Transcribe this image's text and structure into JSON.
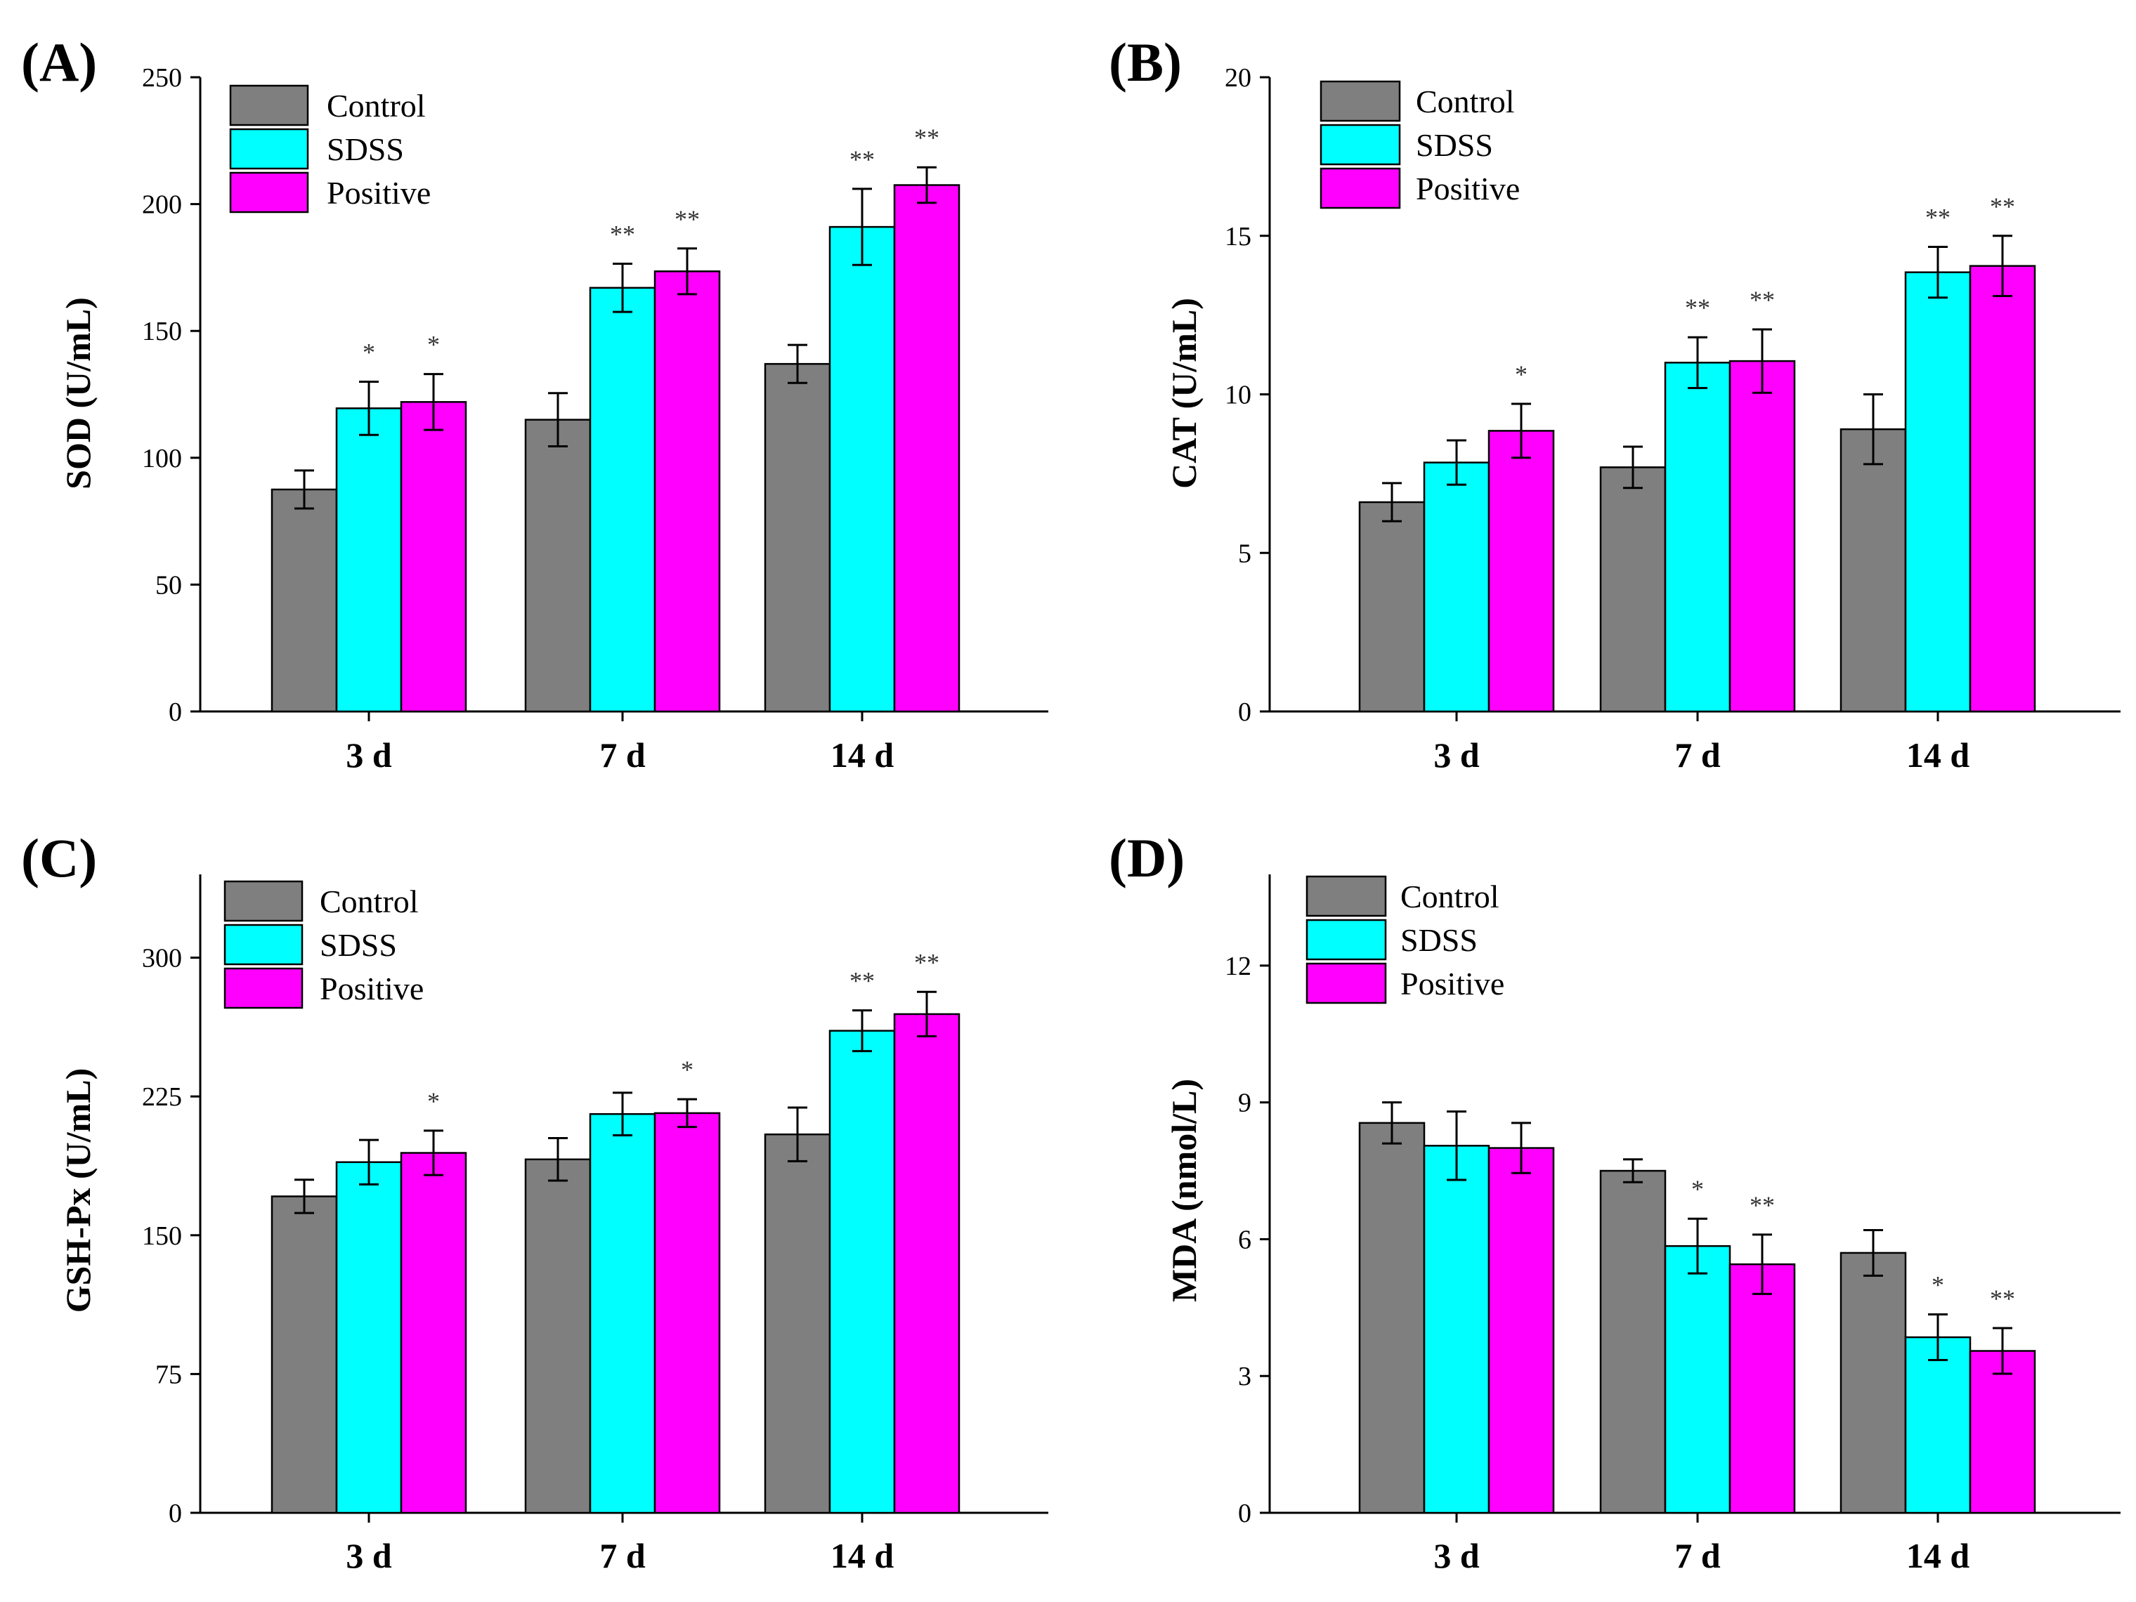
{
  "colors": {
    "Control": "#7f7f7f",
    "SDSS": "#00ffff",
    "Positive": "#ff00ff"
  },
  "legend_position": "top-left",
  "chart_data": [
    {
      "panel": "(A)",
      "type": "bar",
      "categories": [
        "3 d",
        "7 d",
        "14 d"
      ],
      "ylabel": "SOD (U/mL)",
      "ylim": [
        0,
        250
      ],
      "yticks": [
        0,
        50,
        100,
        150,
        200,
        250
      ],
      "legend": [
        "Control",
        "SDSS",
        "Positive"
      ],
      "series": [
        {
          "name": "Control",
          "values": [
            87.5,
            115,
            137
          ],
          "errors": [
            7.5,
            10.5,
            7.5
          ],
          "sig": [
            "",
            "",
            ""
          ]
        },
        {
          "name": "SDSS",
          "values": [
            119.5,
            167,
            191
          ],
          "errors": [
            10.5,
            9.5,
            15
          ],
          "sig": [
            "*",
            "**",
            "**"
          ]
        },
        {
          "name": "Positive",
          "values": [
            122,
            173.5,
            207.5
          ],
          "errors": [
            11,
            9,
            7
          ],
          "sig": [
            "*",
            "**",
            "**"
          ]
        }
      ]
    },
    {
      "panel": "(B)",
      "type": "bar",
      "categories": [
        "3 d",
        "7 d",
        "14 d"
      ],
      "ylabel": "CAT (U/mL)",
      "ylim": [
        0,
        20
      ],
      "yticks": [
        0,
        5,
        10,
        15,
        20
      ],
      "legend": [
        "Control",
        "SDSS",
        "Positive"
      ],
      "series": [
        {
          "name": "Control",
          "values": [
            6.6,
            7.7,
            8.9
          ],
          "errors": [
            0.6,
            0.65,
            1.1
          ],
          "sig": [
            "",
            "",
            ""
          ]
        },
        {
          "name": "SDSS",
          "values": [
            7.85,
            11,
            13.85
          ],
          "errors": [
            0.7,
            0.8,
            0.8
          ],
          "sig": [
            "",
            "**",
            "**"
          ]
        },
        {
          "name": "Positive",
          "values": [
            8.85,
            11.05,
            14.05
          ],
          "errors": [
            0.85,
            1.0,
            0.95
          ],
          "sig": [
            "*",
            "**",
            "**"
          ]
        }
      ]
    },
    {
      "panel": "(C)",
      "type": "bar",
      "categories": [
        "3 d",
        "7 d",
        "14 d"
      ],
      "ylabel": "GSH-Px (U/mL)",
      "ylim": [
        0,
        345
      ],
      "yticks": [
        0,
        75,
        150,
        225,
        300
      ],
      "legend": [
        "Control",
        "SDSS",
        "Positive"
      ],
      "series": [
        {
          "name": "Control",
          "values": [
            171,
            191,
            204.5
          ],
          "errors": [
            9,
            11.5,
            14.5
          ],
          "sig": [
            "",
            "",
            ""
          ]
        },
        {
          "name": "SDSS",
          "values": [
            189.5,
            215.5,
            260.5
          ],
          "errors": [
            12,
            11.5,
            11
          ],
          "sig": [
            "",
            "",
            "**"
          ]
        },
        {
          "name": "Positive",
          "values": [
            194.5,
            216,
            269.5
          ],
          "errors": [
            12,
            7.5,
            12
          ],
          "sig": [
            "*",
            "*",
            "**"
          ]
        }
      ]
    },
    {
      "panel": "(D)",
      "type": "bar",
      "categories": [
        "3 d",
        "7 d",
        "14 d"
      ],
      "ylabel": "MDA (nmol/L)",
      "ylim": [
        0,
        14
      ],
      "yticks": [
        0,
        3,
        6,
        9,
        12
      ],
      "legend": [
        "Control",
        "SDSS",
        "Positive"
      ],
      "series": [
        {
          "name": "Control",
          "values": [
            8.55,
            7.5,
            5.7
          ],
          "errors": [
            0.45,
            0.25,
            0.5
          ],
          "sig": [
            "",
            "",
            ""
          ]
        },
        {
          "name": "SDSS",
          "values": [
            8.05,
            5.85,
            3.85
          ],
          "errors": [
            0.75,
            0.6,
            0.5
          ],
          "sig": [
            "",
            "*",
            "*"
          ]
        },
        {
          "name": "Positive",
          "values": [
            8.0,
            5.45,
            3.55
          ],
          "errors": [
            0.55,
            0.65,
            0.5
          ],
          "sig": [
            "",
            "**",
            "**"
          ]
        }
      ]
    }
  ]
}
